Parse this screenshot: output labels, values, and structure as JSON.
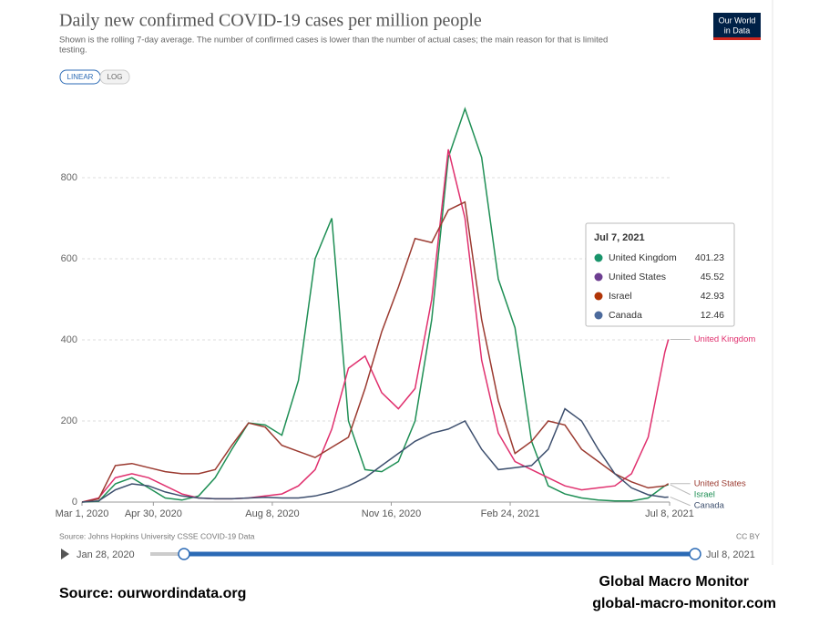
{
  "chart_data": {
    "type": "line",
    "title": "Daily new confirmed COVID-19 cases per million people",
    "subtitle": [
      "Shown is the rolling 7-day average. The number of confirmed cases is lower than the number of actual cases; the main reason for that is limited",
      "testing."
    ],
    "scale_buttons": [
      "LINEAR",
      "LOG"
    ],
    "log_scale": false,
    "x": [
      "2020-03-01",
      "2020-03-15",
      "2020-03-29",
      "2020-04-12",
      "2020-04-26",
      "2020-05-10",
      "2020-05-24",
      "2020-06-07",
      "2020-06-21",
      "2020-07-05",
      "2020-07-19",
      "2020-08-02",
      "2020-08-16",
      "2020-08-30",
      "2020-09-13",
      "2020-09-27",
      "2020-10-11",
      "2020-10-25",
      "2020-11-08",
      "2020-11-22",
      "2020-12-06",
      "2020-12-20",
      "2021-01-03",
      "2021-01-17",
      "2021-01-31",
      "2021-02-14",
      "2021-02-28",
      "2021-03-14",
      "2021-03-28",
      "2021-04-11",
      "2021-04-25",
      "2021-05-09",
      "2021-05-23",
      "2021-06-06",
      "2021-06-20",
      "2021-07-04",
      "2021-07-07"
    ],
    "xlim": [
      "2020-03-01",
      "2021-07-08"
    ],
    "xticks": [
      {
        "value": "2020-03-01",
        "label": "Mar 1, 2020"
      },
      {
        "value": "2020-04-30",
        "label": "Apr 30, 2020"
      },
      {
        "value": "2020-08-08",
        "label": "Aug 8, 2020"
      },
      {
        "value": "2020-11-16",
        "label": "Nov 16, 2020"
      },
      {
        "value": "2021-02-24",
        "label": "Feb 24, 2021"
      },
      {
        "value": "2021-07-08",
        "label": "Jul 8, 2021"
      }
    ],
    "ylim": [
      0,
      1000
    ],
    "yticks": [
      0,
      200,
      400,
      600,
      800
    ],
    "grid": true,
    "series": [
      {
        "name": "Israel",
        "color": "#1f8f55",
        "values": [
          0,
          2,
          45,
          60,
          35,
          10,
          5,
          15,
          60,
          130,
          195,
          190,
          165,
          300,
          600,
          700,
          200,
          80,
          75,
          100,
          200,
          450,
          850,
          970,
          850,
          550,
          430,
          150,
          40,
          20,
          10,
          5,
          3,
          3,
          10,
          40,
          42.93
        ]
      },
      {
        "name": "United Kingdom",
        "color": "#e0306e",
        "values": [
          0,
          10,
          60,
          70,
          60,
          40,
          20,
          10,
          8,
          8,
          10,
          15,
          20,
          40,
          80,
          180,
          330,
          360,
          270,
          230,
          280,
          500,
          870,
          700,
          350,
          170,
          100,
          80,
          60,
          40,
          30,
          35,
          40,
          70,
          160,
          370,
          401.23
        ]
      },
      {
        "name": "United States",
        "color": "#9b3a30",
        "values": [
          0,
          8,
          90,
          95,
          85,
          75,
          70,
          70,
          80,
          140,
          195,
          185,
          140,
          125,
          110,
          135,
          160,
          280,
          420,
          530,
          650,
          640,
          720,
          740,
          450,
          250,
          120,
          150,
          200,
          190,
          130,
          100,
          70,
          50,
          35,
          40,
          45.52
        ]
      },
      {
        "name": "Canada",
        "color": "#3d4f6e",
        "values": [
          0,
          3,
          30,
          45,
          40,
          25,
          15,
          10,
          8,
          8,
          10,
          12,
          10,
          10,
          15,
          25,
          40,
          60,
          90,
          120,
          150,
          170,
          180,
          200,
          130,
          80,
          85,
          90,
          130,
          230,
          200,
          130,
          70,
          35,
          18,
          12,
          12.46
        ]
      }
    ],
    "tooltip": {
      "date": "Jul 7, 2021",
      "rows": [
        {
          "name": "United Kingdom",
          "color": "#19946b",
          "value": 401.23
        },
        {
          "name": "United States",
          "color": "#6d3e91",
          "value": 45.52
        },
        {
          "name": "Israel",
          "color": "#b13507",
          "value": 42.93
        },
        {
          "name": "Canada",
          "color": "#4c6a9c",
          "value": 12.46
        }
      ]
    },
    "source": "Source: Johns Hopkins University CSSE COVID-19 Data",
    "license": "CC BY",
    "timeline": {
      "start": "Jan 28, 2020",
      "end": "Jul 8, 2021"
    }
  },
  "logo": [
    "Our World",
    "in Data"
  ],
  "footer": {
    "source": "Source:  ourwordindata.org",
    "brand": "Global Macro Monitor",
    "url": "global-macro-monitor.com"
  }
}
